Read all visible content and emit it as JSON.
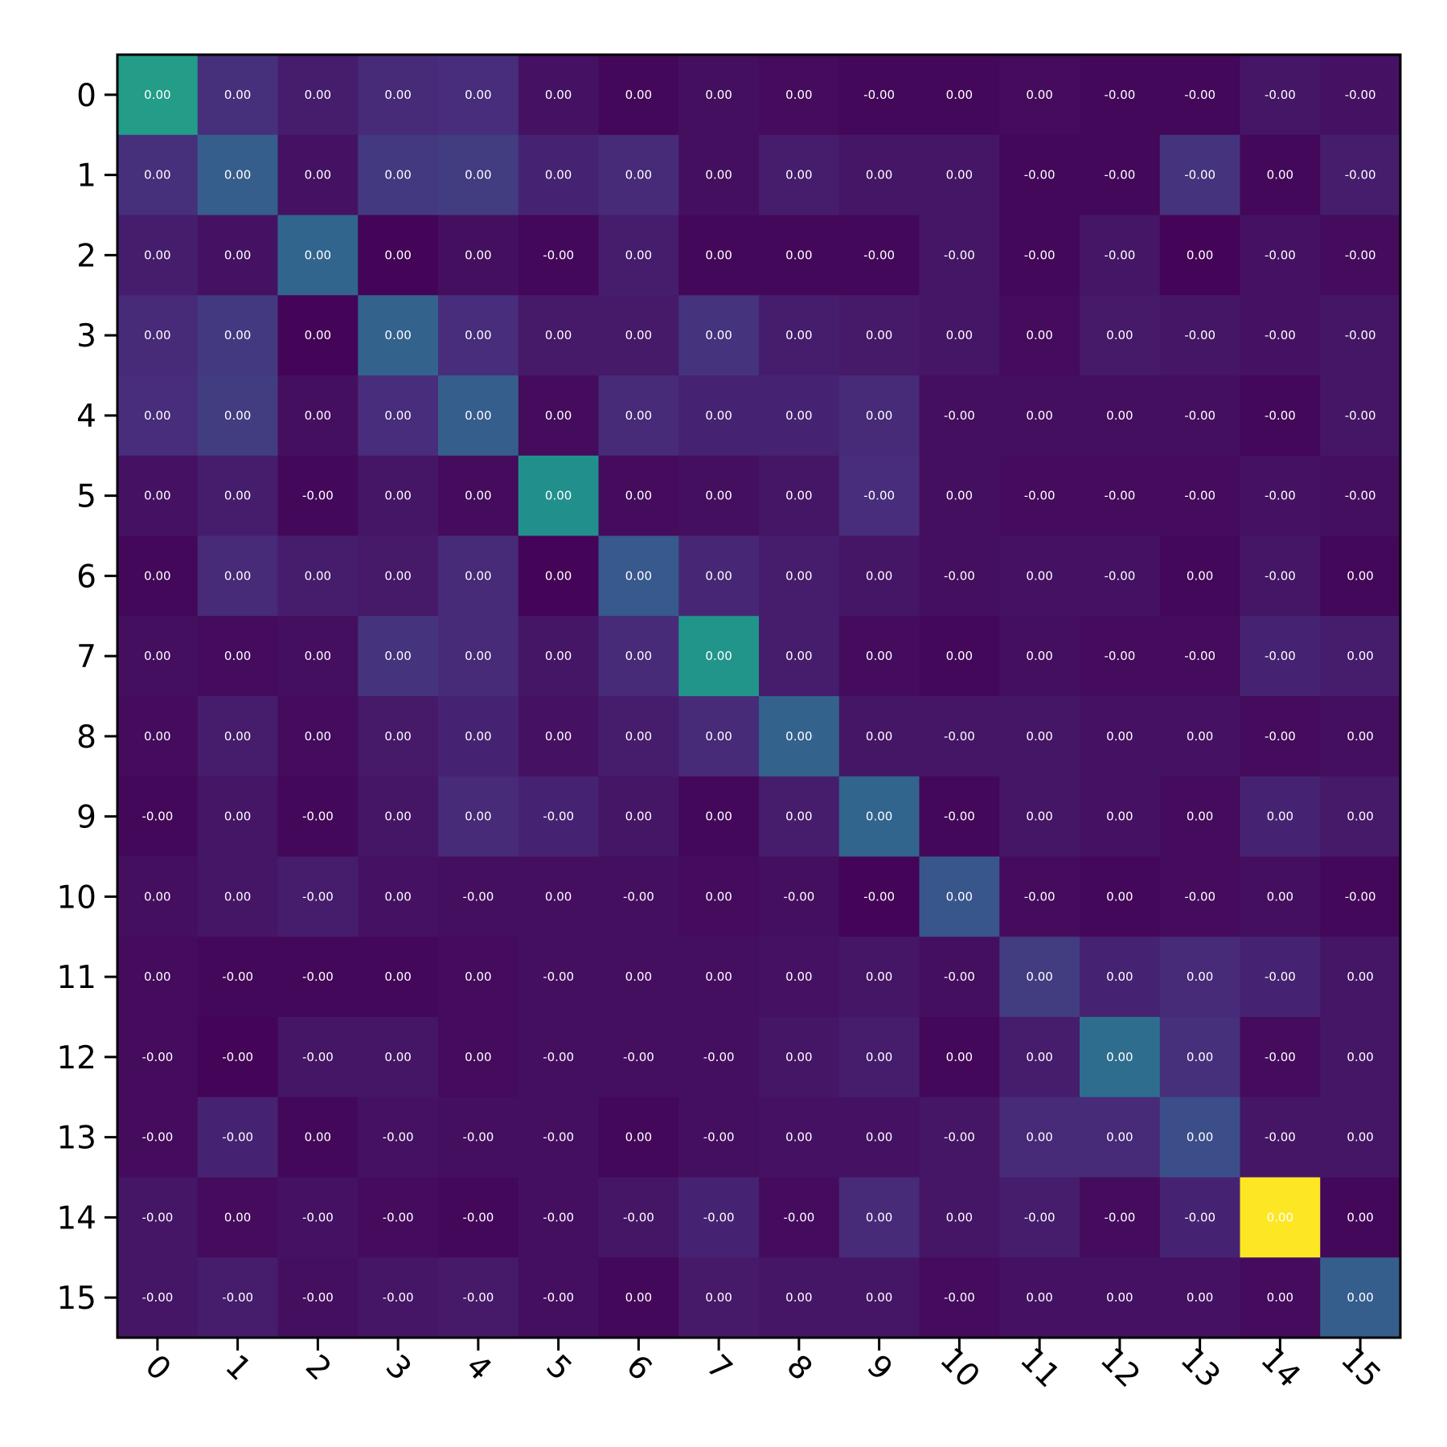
{
  "chart_data": {
    "type": "heatmap",
    "colormap": "viridis",
    "title": "",
    "xlabel": "",
    "ylabel": "",
    "x_ticks": [
      "0",
      "1",
      "2",
      "3",
      "4",
      "5",
      "6",
      "7",
      "8",
      "9",
      "10",
      "11",
      "12",
      "13",
      "14",
      "15"
    ],
    "y_ticks": [
      "0",
      "1",
      "2",
      "3",
      "4",
      "5",
      "6",
      "7",
      "8",
      "9",
      "10",
      "11",
      "12",
      "13",
      "14",
      "15"
    ],
    "x_tick_rotation_deg": 45,
    "grid": false,
    "color_intensity": [
      [
        0.55,
        0.14,
        0.08,
        0.12,
        0.13,
        0.05,
        0.02,
        0.04,
        0.03,
        0.02,
        0.02,
        0.03,
        0.02,
        0.02,
        0.06,
        0.05
      ],
      [
        0.14,
        0.3,
        0.05,
        0.17,
        0.18,
        0.1,
        0.12,
        0.04,
        0.08,
        0.06,
        0.06,
        0.02,
        0.02,
        0.15,
        0.02,
        0.08
      ],
      [
        0.08,
        0.05,
        0.33,
        0.01,
        0.04,
        0.02,
        0.08,
        0.02,
        0.02,
        0.02,
        0.06,
        0.02,
        0.06,
        0.01,
        0.05,
        0.03
      ],
      [
        0.12,
        0.17,
        0.01,
        0.32,
        0.13,
        0.07,
        0.07,
        0.15,
        0.08,
        0.07,
        0.06,
        0.03,
        0.07,
        0.06,
        0.05,
        0.06
      ],
      [
        0.13,
        0.18,
        0.04,
        0.13,
        0.3,
        0.03,
        0.12,
        0.1,
        0.1,
        0.12,
        0.04,
        0.04,
        0.04,
        0.04,
        0.02,
        0.06
      ],
      [
        0.05,
        0.08,
        0.02,
        0.06,
        0.03,
        0.5,
        0.03,
        0.04,
        0.06,
        0.13,
        0.04,
        0.03,
        0.03,
        0.03,
        0.05,
        0.04
      ],
      [
        0.02,
        0.12,
        0.08,
        0.07,
        0.12,
        0.01,
        0.28,
        0.11,
        0.08,
        0.06,
        0.04,
        0.05,
        0.05,
        0.02,
        0.06,
        0.02
      ],
      [
        0.04,
        0.03,
        0.04,
        0.15,
        0.12,
        0.06,
        0.12,
        0.52,
        0.08,
        0.03,
        0.02,
        0.04,
        0.03,
        0.03,
        0.1,
        0.08
      ],
      [
        0.03,
        0.08,
        0.03,
        0.07,
        0.1,
        0.05,
        0.08,
        0.12,
        0.32,
        0.06,
        0.06,
        0.06,
        0.05,
        0.05,
        0.03,
        0.04
      ],
      [
        0.02,
        0.06,
        0.02,
        0.06,
        0.12,
        0.1,
        0.06,
        0.02,
        0.08,
        0.33,
        0.02,
        0.06,
        0.05,
        0.03,
        0.1,
        0.07
      ],
      [
        0.04,
        0.06,
        0.08,
        0.05,
        0.04,
        0.04,
        0.04,
        0.03,
        0.04,
        0.01,
        0.27,
        0.03,
        0.02,
        0.03,
        0.04,
        0.02
      ],
      [
        0.03,
        0.02,
        0.02,
        0.02,
        0.03,
        0.04,
        0.04,
        0.04,
        0.05,
        0.06,
        0.04,
        0.18,
        0.1,
        0.12,
        0.1,
        0.06
      ],
      [
        0.03,
        0.01,
        0.06,
        0.06,
        0.03,
        0.04,
        0.04,
        0.04,
        0.06,
        0.08,
        0.02,
        0.08,
        0.36,
        0.14,
        0.03,
        0.06
      ],
      [
        0.03,
        0.1,
        0.02,
        0.05,
        0.04,
        0.04,
        0.02,
        0.04,
        0.05,
        0.05,
        0.06,
        0.12,
        0.12,
        0.24,
        0.06,
        0.06
      ],
      [
        0.06,
        0.03,
        0.05,
        0.03,
        0.02,
        0.04,
        0.06,
        0.1,
        0.03,
        0.12,
        0.06,
        0.08,
        0.03,
        0.1,
        1.0,
        0.02
      ],
      [
        0.06,
        0.08,
        0.04,
        0.06,
        0.07,
        0.04,
        0.02,
        0.07,
        0.06,
        0.06,
        0.03,
        0.05,
        0.05,
        0.05,
        0.03,
        0.3
      ]
    ],
    "cell_labels": [
      [
        "0.00",
        "0.00",
        "0.00",
        "0.00",
        "0.00",
        "0.00",
        "0.00",
        "0.00",
        "0.00",
        "-0.00",
        "0.00",
        "0.00",
        "-0.00",
        "-0.00",
        "-0.00",
        "-0.00"
      ],
      [
        "0.00",
        "0.00",
        "0.00",
        "0.00",
        "0.00",
        "0.00",
        "0.00",
        "0.00",
        "0.00",
        "0.00",
        "0.00",
        "-0.00",
        "-0.00",
        "-0.00",
        "0.00",
        "-0.00"
      ],
      [
        "0.00",
        "0.00",
        "0.00",
        "0.00",
        "0.00",
        "-0.00",
        "0.00",
        "0.00",
        "0.00",
        "-0.00",
        "-0.00",
        "-0.00",
        "-0.00",
        "0.00",
        "-0.00",
        "-0.00"
      ],
      [
        "0.00",
        "0.00",
        "0.00",
        "0.00",
        "0.00",
        "0.00",
        "0.00",
        "0.00",
        "0.00",
        "0.00",
        "0.00",
        "0.00",
        "0.00",
        "-0.00",
        "-0.00",
        "-0.00"
      ],
      [
        "0.00",
        "0.00",
        "0.00",
        "0.00",
        "0.00",
        "0.00",
        "0.00",
        "0.00",
        "0.00",
        "0.00",
        "-0.00",
        "0.00",
        "0.00",
        "-0.00",
        "-0.00",
        "-0.00"
      ],
      [
        "0.00",
        "0.00",
        "-0.00",
        "0.00",
        "0.00",
        "0.00",
        "0.00",
        "0.00",
        "0.00",
        "-0.00",
        "0.00",
        "-0.00",
        "-0.00",
        "-0.00",
        "-0.00",
        "-0.00"
      ],
      [
        "0.00",
        "0.00",
        "0.00",
        "0.00",
        "0.00",
        "0.00",
        "0.00",
        "0.00",
        "0.00",
        "0.00",
        "-0.00",
        "0.00",
        "-0.00",
        "0.00",
        "-0.00",
        "0.00"
      ],
      [
        "0.00",
        "0.00",
        "0.00",
        "0.00",
        "0.00",
        "0.00",
        "0.00",
        "0.00",
        "0.00",
        "0.00",
        "0.00",
        "0.00",
        "-0.00",
        "-0.00",
        "-0.00",
        "0.00"
      ],
      [
        "0.00",
        "0.00",
        "0.00",
        "0.00",
        "0.00",
        "0.00",
        "0.00",
        "0.00",
        "0.00",
        "0.00",
        "-0.00",
        "0.00",
        "0.00",
        "0.00",
        "-0.00",
        "0.00"
      ],
      [
        "-0.00",
        "0.00",
        "-0.00",
        "0.00",
        "0.00",
        "-0.00",
        "0.00",
        "0.00",
        "0.00",
        "0.00",
        "-0.00",
        "0.00",
        "0.00",
        "0.00",
        "0.00",
        "0.00"
      ],
      [
        "0.00",
        "0.00",
        "-0.00",
        "0.00",
        "-0.00",
        "0.00",
        "-0.00",
        "0.00",
        "-0.00",
        "-0.00",
        "0.00",
        "-0.00",
        "0.00",
        "-0.00",
        "0.00",
        "-0.00"
      ],
      [
        "0.00",
        "-0.00",
        "-0.00",
        "0.00",
        "0.00",
        "-0.00",
        "0.00",
        "0.00",
        "0.00",
        "0.00",
        "-0.00",
        "0.00",
        "0.00",
        "0.00",
        "-0.00",
        "0.00"
      ],
      [
        "-0.00",
        "-0.00",
        "-0.00",
        "0.00",
        "0.00",
        "-0.00",
        "-0.00",
        "-0.00",
        "0.00",
        "0.00",
        "0.00",
        "0.00",
        "0.00",
        "0.00",
        "-0.00",
        "0.00"
      ],
      [
        "-0.00",
        "-0.00",
        "0.00",
        "-0.00",
        "-0.00",
        "-0.00",
        "0.00",
        "-0.00",
        "0.00",
        "0.00",
        "-0.00",
        "0.00",
        "0.00",
        "0.00",
        "-0.00",
        "0.00"
      ],
      [
        "-0.00",
        "0.00",
        "-0.00",
        "-0.00",
        "-0.00",
        "-0.00",
        "-0.00",
        "-0.00",
        "-0.00",
        "0.00",
        "0.00",
        "-0.00",
        "-0.00",
        "-0.00",
        "0.00",
        "0.00"
      ],
      [
        "-0.00",
        "-0.00",
        "-0.00",
        "-0.00",
        "-0.00",
        "-0.00",
        "0.00",
        "0.00",
        "0.00",
        "0.00",
        "-0.00",
        "0.00",
        "0.00",
        "0.00",
        "0.00",
        "0.00"
      ]
    ]
  }
}
